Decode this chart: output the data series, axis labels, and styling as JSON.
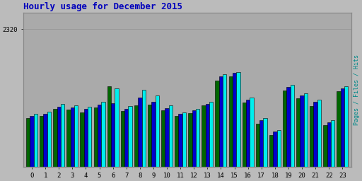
{
  "title": "Hourly usage for December 2015",
  "title_color": "#0000bb",
  "title_fontsize": 9,
  "background_color": "#bbbbbb",
  "plot_bg_color": "#aaaaaa",
  "ylabel_right": "Pages / Files / Hits",
  "ylabel_right_color": "#008888",
  "ylim": [
    0,
    2600
  ],
  "ytick_label": "2320",
  "ytick_value": 2320,
  "hours": [
    0,
    1,
    2,
    3,
    4,
    5,
    6,
    7,
    8,
    9,
    10,
    11,
    12,
    13,
    14,
    15,
    16,
    17,
    18,
    19,
    20,
    21,
    22,
    23
  ],
  "pages": [
    820,
    860,
    980,
    960,
    920,
    1000,
    1360,
    940,
    1040,
    1050,
    950,
    860,
    900,
    1030,
    1450,
    1520,
    1080,
    730,
    540,
    1290,
    1150,
    1020,
    700,
    1270
  ],
  "files": [
    860,
    890,
    1010,
    1000,
    970,
    1050,
    1070,
    980,
    1170,
    1100,
    990,
    890,
    950,
    1060,
    1520,
    1580,
    1130,
    790,
    590,
    1340,
    1200,
    1090,
    750,
    1320
  ],
  "hits": [
    890,
    930,
    1060,
    1040,
    1010,
    1090,
    1320,
    1020,
    1300,
    1200,
    1030,
    920,
    980,
    1090,
    1560,
    1600,
    1170,
    820,
    620,
    1380,
    1240,
    1130,
    790,
    1360
  ],
  "bar_width": 0.28,
  "pages_color": "#006600",
  "files_color": "#0000cc",
  "hits_color": "#00eeee",
  "bar_edge_color": "#000000",
  "grid_color": "#999999",
  "font_family": "monospace",
  "border_color": "#888888"
}
